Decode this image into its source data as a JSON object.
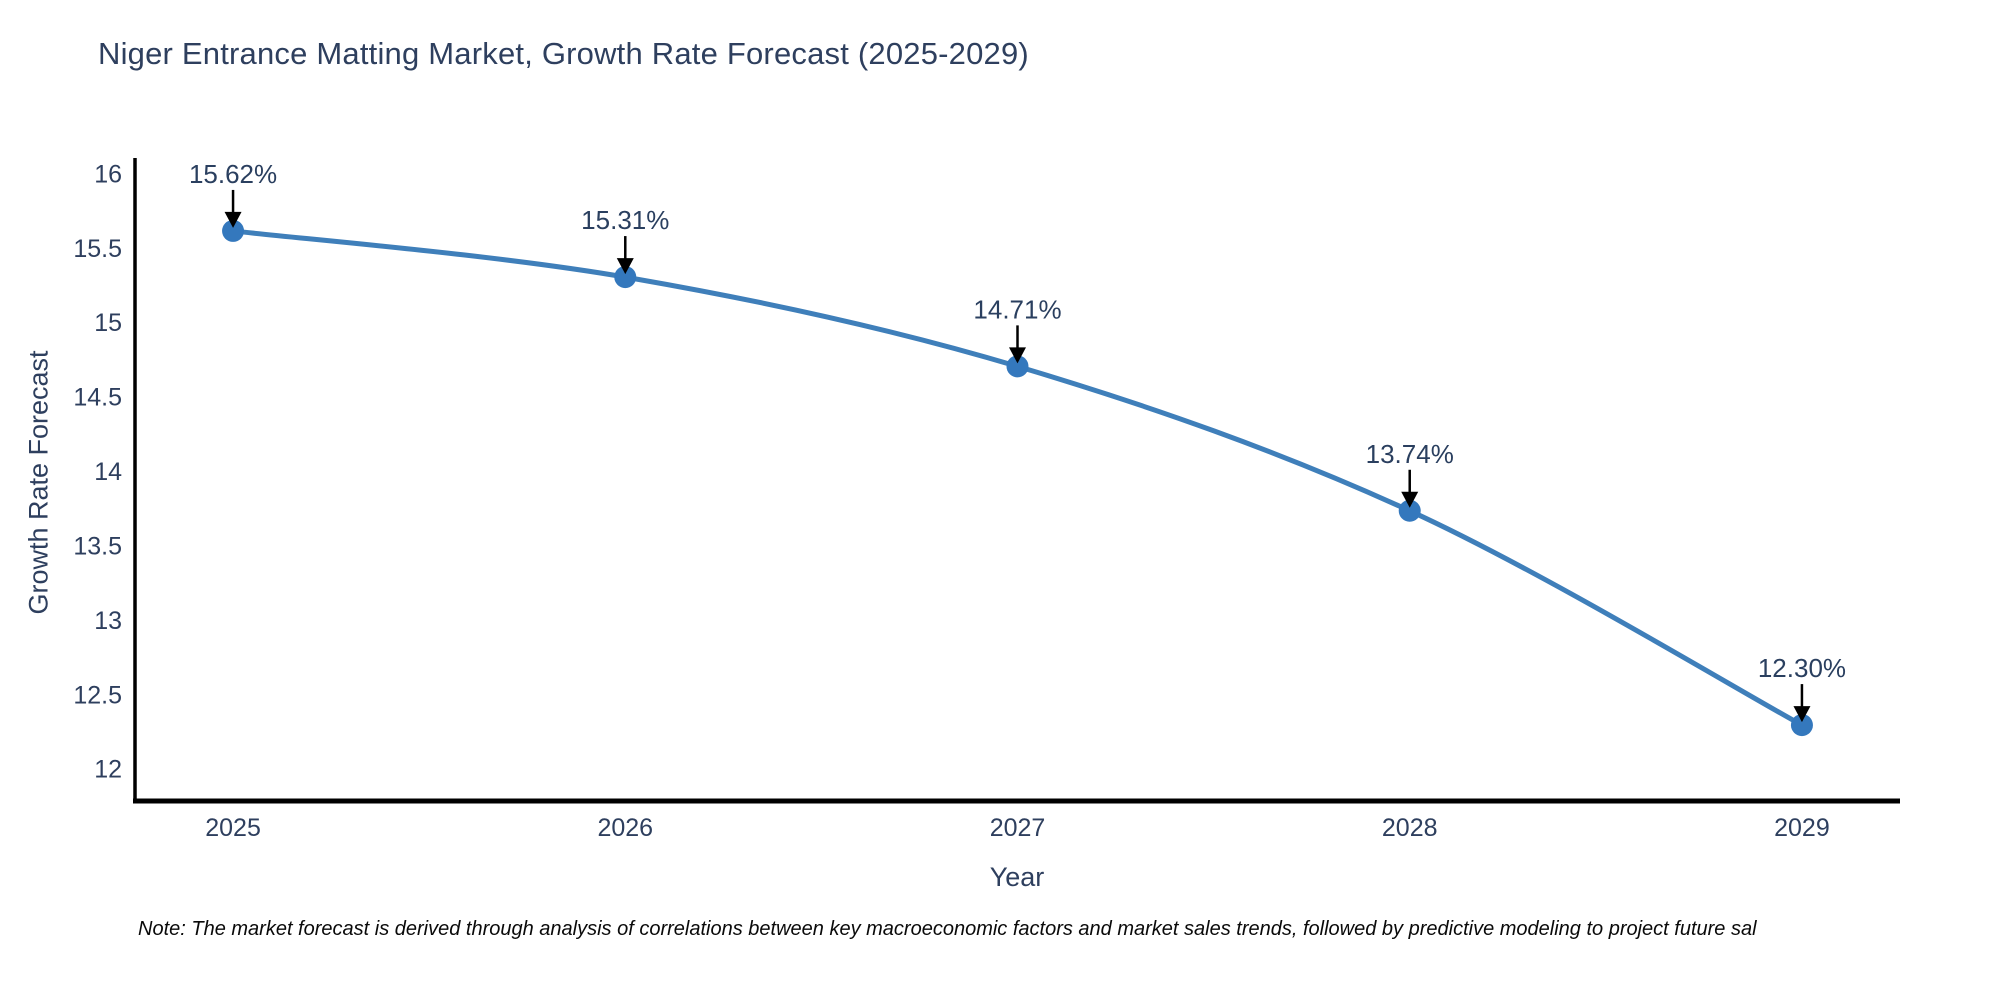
{
  "title": "Niger Entrance Matting Market, Growth Rate Forecast (2025-2029)",
  "note": "Note: The market forecast is derived through analysis of correlations between key macroeconomic factors and market sales trends, followed by predictive modeling to project future sal",
  "chart_data": {
    "type": "line",
    "title": "Niger Entrance Matting Market, Growth Rate Forecast (2025-2029)",
    "xlabel": "Year",
    "ylabel": "Growth Rate Forecast",
    "x": [
      2025,
      2026,
      2027,
      2028,
      2029
    ],
    "series": [
      {
        "name": "Growth Rate Forecast",
        "values": [
          15.62,
          15.31,
          14.71,
          13.74,
          12.3
        ],
        "point_labels": [
          "15.62%",
          "15.31%",
          "14.71%",
          "13.74%",
          "12.30%"
        ]
      }
    ],
    "xlim": [
      2024.75,
      2029.25
    ],
    "ylim": [
      11.79,
      16.11
    ],
    "yticks": [
      12,
      12.5,
      13,
      13.5,
      14,
      14.5,
      15,
      15.5,
      16
    ],
    "ytick_labels": [
      "12",
      "12.5",
      "13",
      "13.5",
      "14",
      "14.5",
      "15",
      "15.5",
      "16"
    ],
    "xtick_labels": [
      "2025",
      "2026",
      "2027",
      "2028",
      "2029"
    ],
    "grid": false,
    "legend_position": "none",
    "line_shape": "spline",
    "colors": {
      "line": "#3f7fba",
      "marker": "#3478bd",
      "axis": "#000000",
      "tick_label": "#2e3f5e",
      "annotation_text": "#2a3f5f",
      "annotation_arrow": "#000000",
      "background": "#ffffff"
    }
  }
}
